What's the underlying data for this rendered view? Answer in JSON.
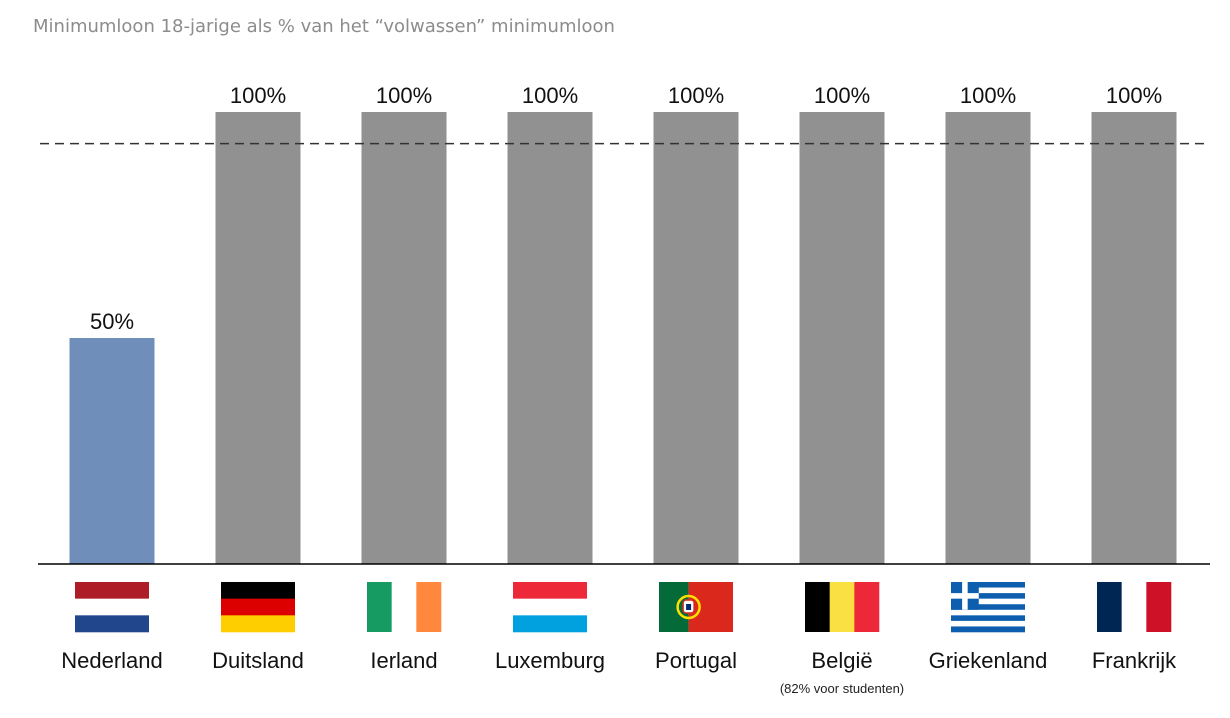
{
  "chart_data": {
    "type": "bar",
    "title": "Minimumloon 18-jarige als % van het “volwassen” minimumloon",
    "xlabel": "",
    "ylabel": "",
    "ylim": [
      0,
      100
    ],
    "reference_line": 93,
    "categories": [
      "Nederland",
      "Duitsland",
      "Ierland",
      "Luxemburg",
      "Portugal",
      "België",
      "Griekenland",
      "Frankrijk"
    ],
    "values": [
      50,
      100,
      100,
      100,
      100,
      100,
      100,
      100
    ],
    "value_labels": [
      "50%",
      "100%",
      "100%",
      "100%",
      "100%",
      "100%",
      "100%",
      "100%"
    ],
    "notes": [
      "",
      "",
      "",
      "",
      "",
      "(82% voor studenten)",
      "",
      ""
    ],
    "flags": [
      "flag-netherlands",
      "flag-germany",
      "flag-ireland",
      "flag-luxembourg",
      "flag-portugal",
      "flag-belgium",
      "flag-greece",
      "flag-france"
    ],
    "bar_colors": [
      "#6f8fba",
      "#919191",
      "#919191",
      "#919191",
      "#919191",
      "#919191",
      "#919191",
      "#919191"
    ],
    "grid": false,
    "legend": "none"
  }
}
